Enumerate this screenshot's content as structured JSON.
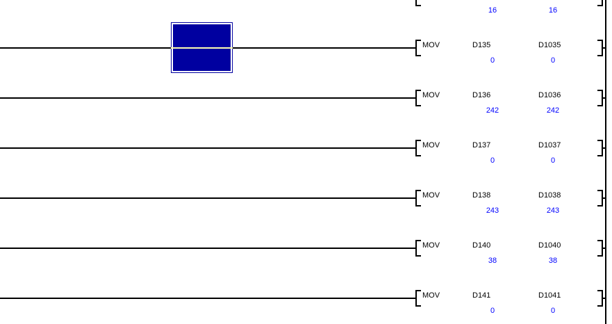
{
  "colors": {
    "background": "#FFFFFF",
    "wire": "#000000",
    "text": "#000000",
    "monitor_value": "#0000FF",
    "selection_fill": "#0000A0",
    "selection_outline": "#FFFFFF",
    "selection_wire": "#FFFFB4"
  },
  "rows": [
    {
      "instruction": "",
      "source": "",
      "dest": "",
      "source_value": "16",
      "dest_value": "16"
    },
    {
      "instruction": "MOV",
      "source": "D135",
      "dest": "D1035",
      "source_value": "0",
      "dest_value": "0"
    },
    {
      "instruction": "MOV",
      "source": "D136",
      "dest": "D1036",
      "source_value": "242",
      "dest_value": "242"
    },
    {
      "instruction": "MOV",
      "source": "D137",
      "dest": "D1037",
      "source_value": "0",
      "dest_value": "0"
    },
    {
      "instruction": "MOV",
      "source": "D138",
      "dest": "D1038",
      "source_value": "243",
      "dest_value": "243"
    },
    {
      "instruction": "MOV",
      "source": "D140",
      "dest": "D1040",
      "source_value": "38",
      "dest_value": "38"
    },
    {
      "instruction": "MOV",
      "source": "D141",
      "dest": "D1041",
      "source_value": "0",
      "dest_value": "0"
    }
  ]
}
